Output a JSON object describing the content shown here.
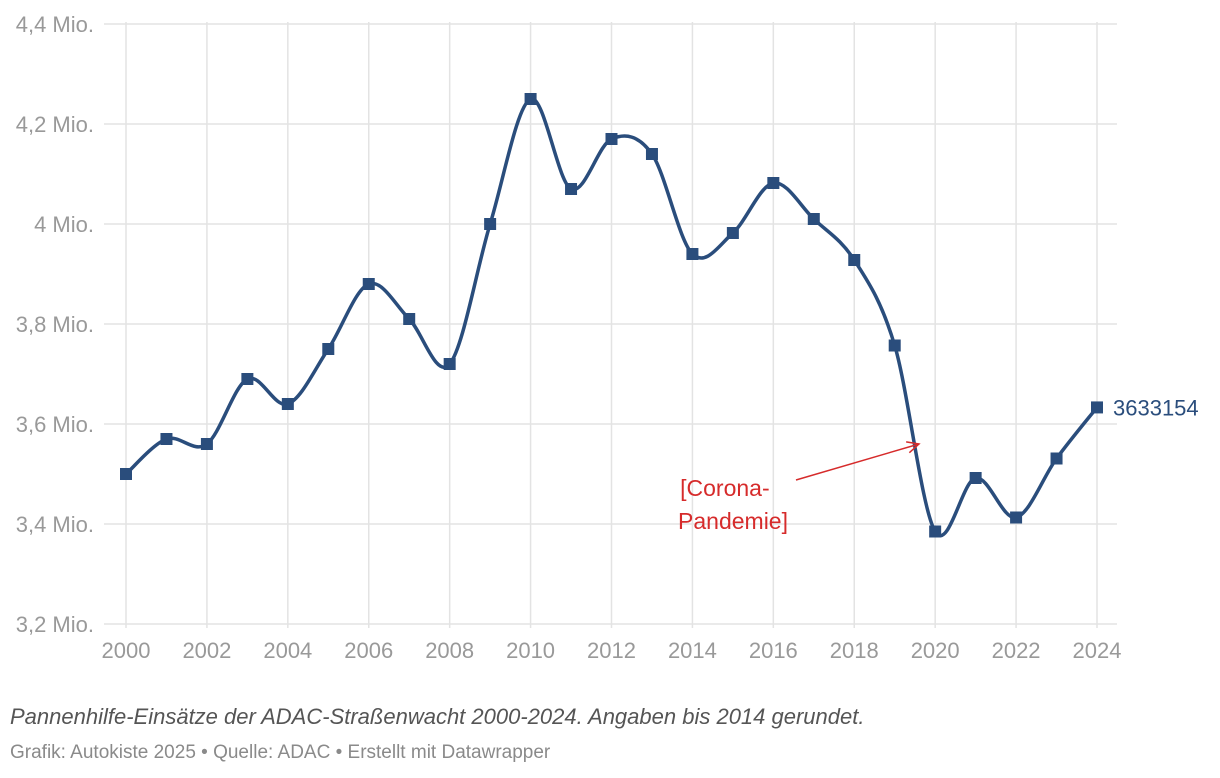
{
  "caption": "Pannenhilfe-Einsätze der ADAC-Straßenwacht 2000-2024. Angaben bis 2014 gerundet.",
  "credit": "Grafik: Autokiste 2025 • Quelle: ADAC • Erstellt mit Datawrapper",
  "colors": {
    "series": "#2a4d7c",
    "annotation": "#d62b2b",
    "grid": "#e3e3e3",
    "tick": "#999999"
  },
  "chart_data": {
    "type": "line",
    "smooth": true,
    "marker": "square",
    "x": [
      2000,
      2001,
      2002,
      2003,
      2004,
      2005,
      2006,
      2007,
      2008,
      2009,
      2010,
      2011,
      2012,
      2013,
      2014,
      2015,
      2016,
      2017,
      2018,
      2019,
      2020,
      2021,
      2022,
      2023,
      2024
    ],
    "series": [
      {
        "values": [
          3500000,
          3570000,
          3560000,
          3690000,
          3640000,
          3750000,
          3880000,
          3810000,
          3720000,
          4000000,
          4250000,
          4070000,
          4170000,
          4140000,
          3940000,
          3982000,
          4082000,
          4010000,
          3928000,
          3757000,
          3385000,
          3492000,
          3413000,
          3531000,
          3633154
        ]
      }
    ],
    "end_label": "3633154",
    "ylim": [
      3200000,
      4400000
    ],
    "y_ticks": [
      3200000,
      3400000,
      3600000,
      3800000,
      4000000,
      4200000,
      4400000
    ],
    "y_tick_labels": [
      "3,2 Mio.",
      "3,4 Mio.",
      "3,6 Mio.",
      "3,8 Mio.",
      "4 Mio.",
      "4,2 Mio.",
      "4,4 Mio."
    ],
    "x_ticks": [
      2000,
      2002,
      2004,
      2006,
      2008,
      2010,
      2012,
      2014,
      2016,
      2018,
      2020,
      2022,
      2024
    ],
    "x_tick_labels": [
      "2000",
      "2002",
      "2004",
      "2006",
      "2008",
      "2010",
      "2012",
      "2014",
      "2016",
      "2018",
      "2020",
      "2022",
      "2024"
    ],
    "grid": true,
    "annotations": [
      {
        "lines": [
          "[Corona-",
          "Pandemie]"
        ],
        "points_to_year": 2019.6,
        "points_to_value": 3560000
      }
    ]
  }
}
